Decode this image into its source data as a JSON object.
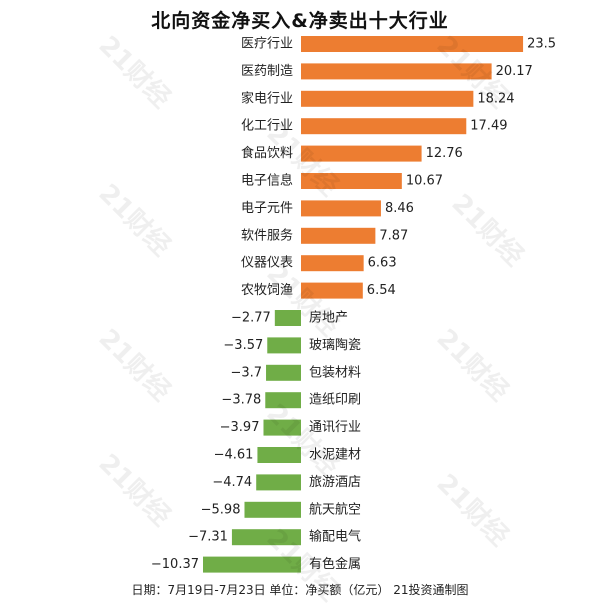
{
  "title": "北向资金净买入&净卖出十大行业",
  "footer": "日期：7月19日-7月23日 单位：净买额（亿元） 21投资通制图",
  "watermark": "21财经",
  "colors": {
    "buy": "#ed7d31",
    "sell": "#70ad47",
    "text": "#222222"
  },
  "chart_data": {
    "type": "bar",
    "orientation": "horizontal",
    "categories": [
      "医疗行业",
      "医药制造",
      "家电行业",
      "化工行业",
      "食品饮料",
      "电子信息",
      "电子元件",
      "软件服务",
      "仪器仪表",
      "农牧饲渔",
      "房地产",
      "玻璃陶瓷",
      "包装材料",
      "造纸印刷",
      "通讯行业",
      "水泥建材",
      "旅游酒店",
      "航天航空",
      "输配电气",
      "有色金属"
    ],
    "values": [
      23.5,
      20.17,
      18.24,
      17.49,
      12.76,
      10.67,
      8.46,
      7.87,
      6.63,
      6.54,
      -2.77,
      -3.57,
      -3.7,
      -3.78,
      -3.97,
      -4.61,
      -4.74,
      -5.98,
      -7.31,
      -10.37
    ],
    "value_labels": [
      "23.5",
      "20.17",
      "18.24",
      "17.49",
      "12.76",
      "10.67",
      "8.46",
      "7.87",
      "6.63",
      "6.54",
      "−2.77",
      "−3.57",
      "−3.7",
      "−3.78",
      "−3.97",
      "−4.61",
      "−4.74",
      "−5.98",
      "−7.31",
      "−10.37"
    ],
    "grid": false,
    "legend": "none"
  }
}
